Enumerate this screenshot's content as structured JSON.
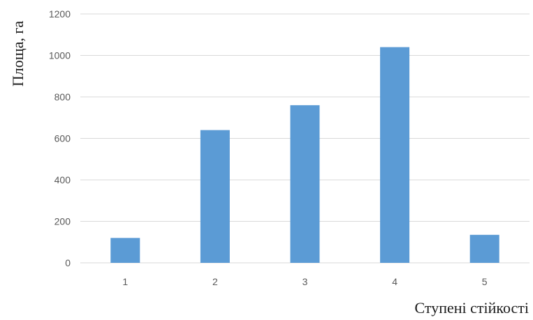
{
  "chart_data": {
    "type": "bar",
    "categories": [
      "1",
      "2",
      "3",
      "4",
      "5"
    ],
    "values": [
      120,
      640,
      760,
      1040,
      135
    ],
    "title": "",
    "xlabel": "Ступені стійкості",
    "ylabel": "Площа, га",
    "ylim": [
      0,
      1200
    ],
    "yticks": [
      0,
      200,
      400,
      600,
      800,
      1000,
      1200
    ],
    "grid": true,
    "legend": "none",
    "bar_color": "#5b9bd5"
  }
}
